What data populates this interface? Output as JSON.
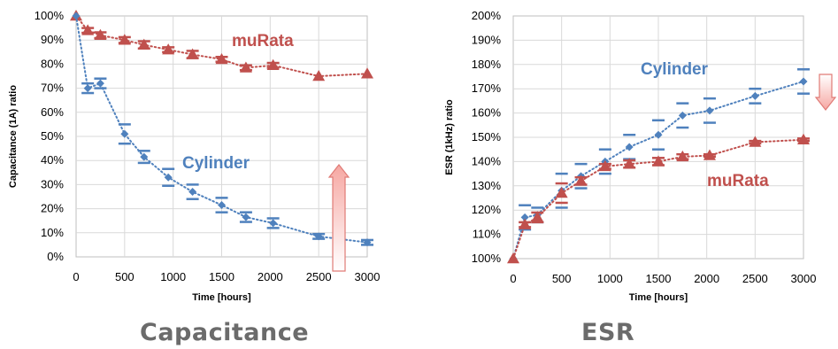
{
  "chart_data": [
    {
      "type": "line",
      "title": "Capacitance",
      "xlabel": "Time [hours]",
      "ylabel": "Capacitance (1A) ratio",
      "xlim": [
        0,
        3000
      ],
      "ylim": [
        0,
        100
      ],
      "x_ticks": [
        "0",
        "500",
        "1000",
        "1500",
        "2000",
        "2500",
        "3000"
      ],
      "y_ticks": [
        "0%",
        "10%",
        "20%",
        "30%",
        "40%",
        "50%",
        "60%",
        "70%",
        "80%",
        "90%",
        "100%"
      ],
      "grid": true,
      "arrow_direction": "up",
      "series": [
        {
          "name": "muRata",
          "color": "#c0504d",
          "marker": "triangle",
          "points": [
            {
              "x": 0,
              "y": 100,
              "err": 0
            },
            {
              "x": 120,
              "y": 94,
              "err": 1
            },
            {
              "x": 250,
              "y": 92,
              "err": 1.2
            },
            {
              "x": 500,
              "y": 90,
              "err": 1.2
            },
            {
              "x": 700,
              "y": 88,
              "err": 1.5
            },
            {
              "x": 950,
              "y": 86,
              "err": 1
            },
            {
              "x": 1200,
              "y": 84,
              "err": 1.5
            },
            {
              "x": 1500,
              "y": 82,
              "err": 1
            },
            {
              "x": 1750,
              "y": 78.5,
              "err": 1
            },
            {
              "x": 2030,
              "y": 79.5,
              "err": 1
            },
            {
              "x": 2500,
              "y": 75,
              "err": 0
            },
            {
              "x": 3000,
              "y": 76,
              "err": 0
            }
          ]
        },
        {
          "name": "Cylinder",
          "color": "#4f81bd",
          "marker": "diamond",
          "points": [
            {
              "x": 0,
              "y": 100,
              "err": 0
            },
            {
              "x": 120,
              "y": 70,
              "err": 2
            },
            {
              "x": 250,
              "y": 72,
              "err": 2
            },
            {
              "x": 500,
              "y": 51,
              "err": 4
            },
            {
              "x": 700,
              "y": 41.5,
              "err": 2.5
            },
            {
              "x": 950,
              "y": 33,
              "err": 3.5
            },
            {
              "x": 1200,
              "y": 27,
              "err": 3
            },
            {
              "x": 1500,
              "y": 21.5,
              "err": 3
            },
            {
              "x": 1750,
              "y": 16.5,
              "err": 2
            },
            {
              "x": 2030,
              "y": 14,
              "err": 2
            },
            {
              "x": 2500,
              "y": 8.5,
              "err": 1
            },
            {
              "x": 3000,
              "y": 6,
              "err": 1
            }
          ]
        }
      ]
    },
    {
      "type": "line",
      "title": "ESR",
      "xlabel": "Time [hours]",
      "ylabel": "ESR (1kHz) ratio",
      "xlim": [
        0,
        3000
      ],
      "ylim": [
        100,
        200
      ],
      "x_ticks": [
        "0",
        "500",
        "1000",
        "1500",
        "2000",
        "2500",
        "3000"
      ],
      "y_ticks": [
        "100%",
        "110%",
        "120%",
        "130%",
        "140%",
        "150%",
        "160%",
        "170%",
        "180%",
        "190%",
        "200%"
      ],
      "grid": true,
      "arrow_direction": "down",
      "series": [
        {
          "name": "Cylinder",
          "color": "#4f81bd",
          "marker": "diamond",
          "points": [
            {
              "x": 0,
              "y": 100,
              "err": 0
            },
            {
              "x": 120,
              "y": 117,
              "err": 5
            },
            {
              "x": 250,
              "y": 118,
              "err": 3
            },
            {
              "x": 500,
              "y": 128,
              "err": 7
            },
            {
              "x": 700,
              "y": 134,
              "err": 5
            },
            {
              "x": 950,
              "y": 140,
              "err": 5
            },
            {
              "x": 1200,
              "y": 146,
              "err": 5
            },
            {
              "x": 1500,
              "y": 151,
              "err": 6
            },
            {
              "x": 1750,
              "y": 159,
              "err": 5
            },
            {
              "x": 2030,
              "y": 161,
              "err": 5
            },
            {
              "x": 2500,
              "y": 167,
              "err": 3
            },
            {
              "x": 3000,
              "y": 173,
              "err": 5
            }
          ]
        },
        {
          "name": "muRata",
          "color": "#c0504d",
          "marker": "triangle",
          "points": [
            {
              "x": 0,
              "y": 100,
              "err": 0
            },
            {
              "x": 120,
              "y": 114,
              "err": 1
            },
            {
              "x": 250,
              "y": 117,
              "err": 2
            },
            {
              "x": 500,
              "y": 127,
              "err": 4
            },
            {
              "x": 700,
              "y": 132,
              "err": 1.5
            },
            {
              "x": 950,
              "y": 138,
              "err": 1
            },
            {
              "x": 1200,
              "y": 139,
              "err": 1.5
            },
            {
              "x": 1500,
              "y": 140,
              "err": 1.5
            },
            {
              "x": 1750,
              "y": 142,
              "err": 1
            },
            {
              "x": 2030,
              "y": 142.5,
              "err": 0.5
            },
            {
              "x": 2500,
              "y": 148,
              "err": 0.5
            },
            {
              "x": 3000,
              "y": 149,
              "err": 0.5
            }
          ]
        }
      ]
    }
  ]
}
